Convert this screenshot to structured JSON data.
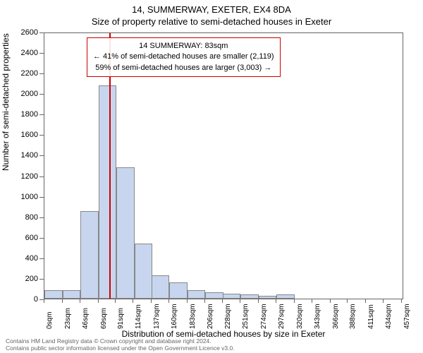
{
  "title_line1": "14, SUMMERWAY, EXETER, EX4 8DA",
  "title_line2": "Size of property relative to semi-detached houses in Exeter",
  "y_label": "Number of semi-detached properties",
  "x_label": "Distribution of semi-detached houses by size in Exeter",
  "chart": {
    "type": "histogram",
    "ylim": [
      0,
      2600
    ],
    "ytick_step": 200,
    "xtick_step": 23,
    "x_max": 460,
    "x_unit": "sqm",
    "bar_color": "#c7d5ef",
    "bar_border": "#888888",
    "background": "#ffffff",
    "marker_color": "#cc0000",
    "marker_value": 83,
    "bins": [
      {
        "start": 0,
        "count": 80
      },
      {
        "start": 23,
        "count": 80
      },
      {
        "start": 46,
        "count": 850
      },
      {
        "start": 69,
        "count": 2080
      },
      {
        "start": 92,
        "count": 1280
      },
      {
        "start": 115,
        "count": 540
      },
      {
        "start": 137,
        "count": 230
      },
      {
        "start": 160,
        "count": 160
      },
      {
        "start": 183,
        "count": 80
      },
      {
        "start": 206,
        "count": 60
      },
      {
        "start": 228,
        "count": 50
      },
      {
        "start": 251,
        "count": 40
      },
      {
        "start": 274,
        "count": 30
      },
      {
        "start": 297,
        "count": 40
      },
      {
        "start": 320,
        "count": 0
      },
      {
        "start": 343,
        "count": 0
      },
      {
        "start": 366,
        "count": 0
      },
      {
        "start": 388,
        "count": 0
      },
      {
        "start": 411,
        "count": 0
      },
      {
        "start": 434,
        "count": 0
      }
    ]
  },
  "annotation": {
    "line1": "14 SUMMERWAY: 83sqm",
    "line2": "← 41% of semi-detached houses are smaller (2,119)",
    "line3": "59% of semi-detached houses are larger (3,003) →"
  },
  "footer": {
    "line1": "Contains HM Land Registry data © Crown copyright and database right 2024.",
    "line2": "Contains public sector information licensed under the Open Government Licence v3.0."
  }
}
